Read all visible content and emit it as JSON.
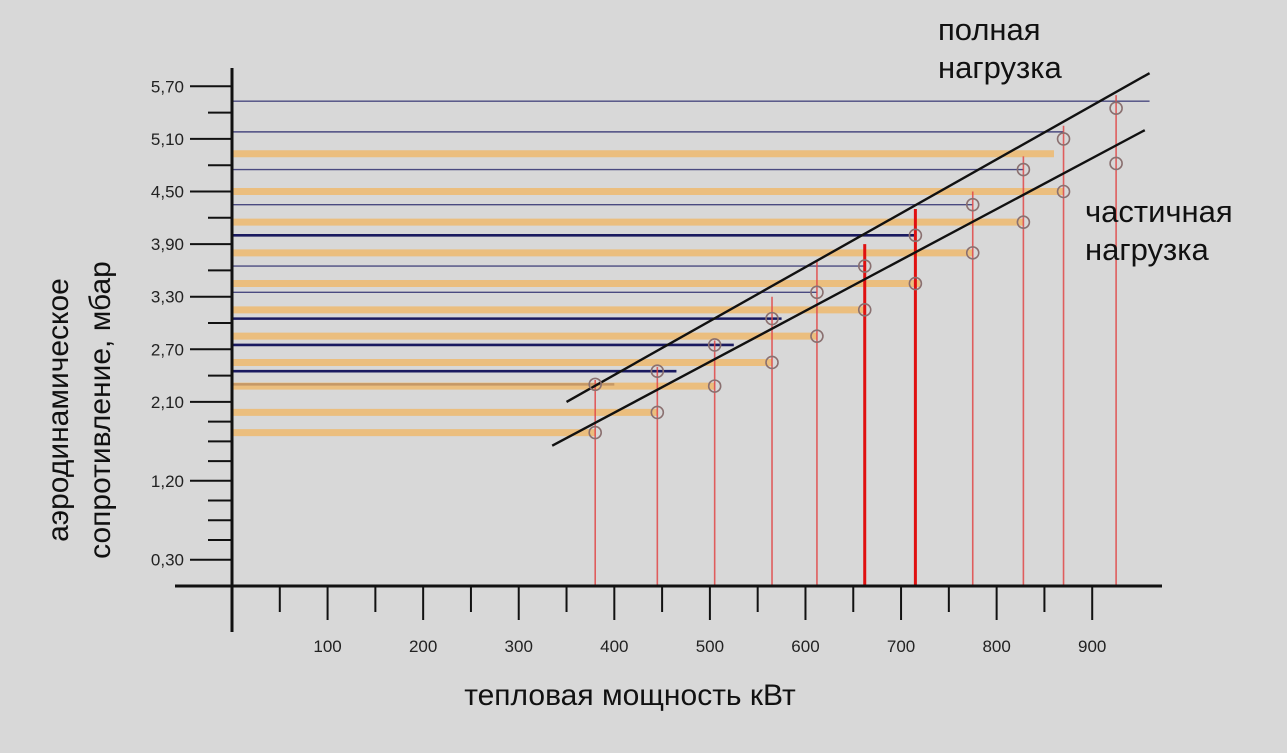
{
  "chart_data": {
    "type": "line",
    "xlabel": "тепловая мощность кВт",
    "ylabel_lines": [
      "аэродинамическое",
      "сопротивление, мбар"
    ],
    "xlim": [
      0,
      950
    ],
    "ylim": [
      0,
      6.0
    ],
    "x_ticks": [
      100,
      200,
      300,
      400,
      500,
      600,
      700,
      800,
      900
    ],
    "x_tick_labels": [
      "100",
      "200",
      "300",
      "400",
      "500",
      "600",
      "700",
      "800",
      "900"
    ],
    "y_ticks": [
      0.3,
      1.2,
      2.1,
      2.7,
      3.3,
      3.9,
      4.5,
      5.1,
      5.7
    ],
    "y_tick_labels": [
      "0,30",
      "1,20",
      "2,10",
      "2,70",
      "3,30",
      "3,90",
      "4,50",
      "5,10",
      "5,70"
    ],
    "series": [
      {
        "name": "полная нагрузка",
        "name_lines": [
          "полная",
          "нагрузка"
        ],
        "line_color": "#111111",
        "line_start": [
          350,
          2.1
        ],
        "line_end": [
          960,
          5.85
        ],
        "x": [
          380,
          445,
          505,
          565,
          612,
          662,
          715,
          775,
          828,
          870,
          925
        ],
        "y": [
          2.3,
          2.45,
          2.75,
          3.05,
          3.35,
          3.65,
          4.0,
          4.35,
          4.75,
          5.1,
          5.45
        ]
      },
      {
        "name": "частичная нагрузка",
        "name_lines": [
          "частичная",
          "нагрузка"
        ],
        "line_color": "#111111",
        "line_start": [
          335,
          1.6
        ],
        "line_end": [
          955,
          5.2
        ],
        "x": [
          380,
          445,
          505,
          565,
          612,
          662,
          715,
          775,
          828,
          870,
          925
        ],
        "y": [
          1.75,
          1.98,
          2.28,
          2.55,
          2.85,
          3.15,
          3.45,
          3.8,
          4.15,
          4.5,
          4.82
        ]
      }
    ],
    "vertical_lines": {
      "color": "#e04848",
      "x": [
        380,
        445,
        505,
        565,
        612,
        662,
        715,
        775,
        828,
        870,
        925
      ],
      "top_y": [
        2.35,
        2.5,
        2.8,
        3.3,
        3.7,
        3.9,
        4.3,
        4.5,
        4.9,
        5.25,
        5.6
      ],
      "emphasis": [
        false,
        false,
        false,
        false,
        false,
        true,
        true,
        false,
        false,
        false,
        false
      ]
    },
    "horizontal_lines": [
      {
        "y": 5.53,
        "x_end": 960,
        "color": "#4a4a80",
        "weight": "thin"
      },
      {
        "y": 5.18,
        "x_end": 870,
        "color": "#4a4a80",
        "weight": "thin"
      },
      {
        "y": 4.93,
        "x_end": 860,
        "color": "#f0b868",
        "weight": "band"
      },
      {
        "y": 4.75,
        "x_end": 828,
        "color": "#4a4a80",
        "weight": "thin"
      },
      {
        "y": 4.5,
        "x_end": 870,
        "color": "#f0b868",
        "weight": "band"
      },
      {
        "y": 4.35,
        "x_end": 775,
        "color": "#4a4a80",
        "weight": "thin"
      },
      {
        "y": 4.15,
        "x_end": 828,
        "color": "#f0b868",
        "weight": "band"
      },
      {
        "y": 4.0,
        "x_end": 715,
        "color": "#1a1a60",
        "weight": "bold"
      },
      {
        "y": 3.8,
        "x_end": 775,
        "color": "#f0b868",
        "weight": "band"
      },
      {
        "y": 3.65,
        "x_end": 662,
        "color": "#4a4a80",
        "weight": "thin"
      },
      {
        "y": 3.45,
        "x_end": 720,
        "color": "#f0b868",
        "weight": "band"
      },
      {
        "y": 3.35,
        "x_end": 612,
        "color": "#4a4a80",
        "weight": "thin"
      },
      {
        "y": 3.15,
        "x_end": 662,
        "color": "#f0b868",
        "weight": "band"
      },
      {
        "y": 3.05,
        "x_end": 575,
        "color": "#1a1a60",
        "weight": "bold"
      },
      {
        "y": 2.85,
        "x_end": 612,
        "color": "#f0b868",
        "weight": "band"
      },
      {
        "y": 2.75,
        "x_end": 525,
        "color": "#1a1a60",
        "weight": "bold"
      },
      {
        "y": 2.55,
        "x_end": 565,
        "color": "#f0b868",
        "weight": "band"
      },
      {
        "y": 2.45,
        "x_end": 465,
        "color": "#1a1a60",
        "weight": "bold"
      },
      {
        "y": 2.3,
        "x_end": 400,
        "color": "#1a1a60",
        "weight": "bold"
      },
      {
        "y": 2.28,
        "x_end": 505,
        "color": "#f0b868",
        "weight": "band"
      },
      {
        "y": 1.98,
        "x_end": 445,
        "color": "#f0b868",
        "weight": "band"
      },
      {
        "y": 1.75,
        "x_end": 380,
        "color": "#f0b868",
        "weight": "band"
      }
    ],
    "grid": false
  }
}
